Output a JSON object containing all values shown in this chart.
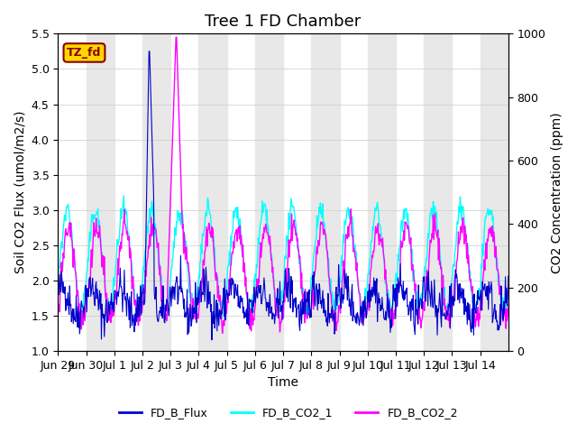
{
  "title": "Tree 1 FD Chamber",
  "xlabel": "Time",
  "ylabel_left": "Soil CO2 Flux (umol/m2/s)",
  "ylabel_right": "CO2 Concentration (ppm)",
  "ylim_left": [
    1.0,
    5.5
  ],
  "ylim_right": [
    0,
    1000
  ],
  "n_days": 16,
  "xtick_positions": [
    0,
    1,
    2,
    3,
    4,
    5,
    6,
    7,
    8,
    9,
    10,
    11,
    12,
    13,
    14,
    15
  ],
  "xtick_labels": [
    "Jun 29",
    "Jun 30",
    "Jul 1",
    "Jul 2",
    "Jul 3",
    "Jul 4",
    "Jul 5",
    "Jul 6",
    "Jul 7",
    "Jul 8",
    "Jul 9",
    "Jul 10",
    "Jul 11",
    "Jul 12",
    "Jul 13",
    "Jul 14"
  ],
  "flux_color": "#0000CC",
  "co2_1_color": "#00FFFF",
  "co2_2_color": "#FF00FF",
  "legend_labels": [
    "FD_B_Flux",
    "FD_B_CO2_1",
    "FD_B_CO2_2"
  ],
  "annotation_text": "TZ_fd",
  "annotation_bg": "#FFD700",
  "annotation_text_color": "#8B0000",
  "grid_color": "#CCCCCC",
  "band_color": "#E8E8E8",
  "title_fontsize": 13,
  "axis_fontsize": 10,
  "tick_fontsize": 9
}
